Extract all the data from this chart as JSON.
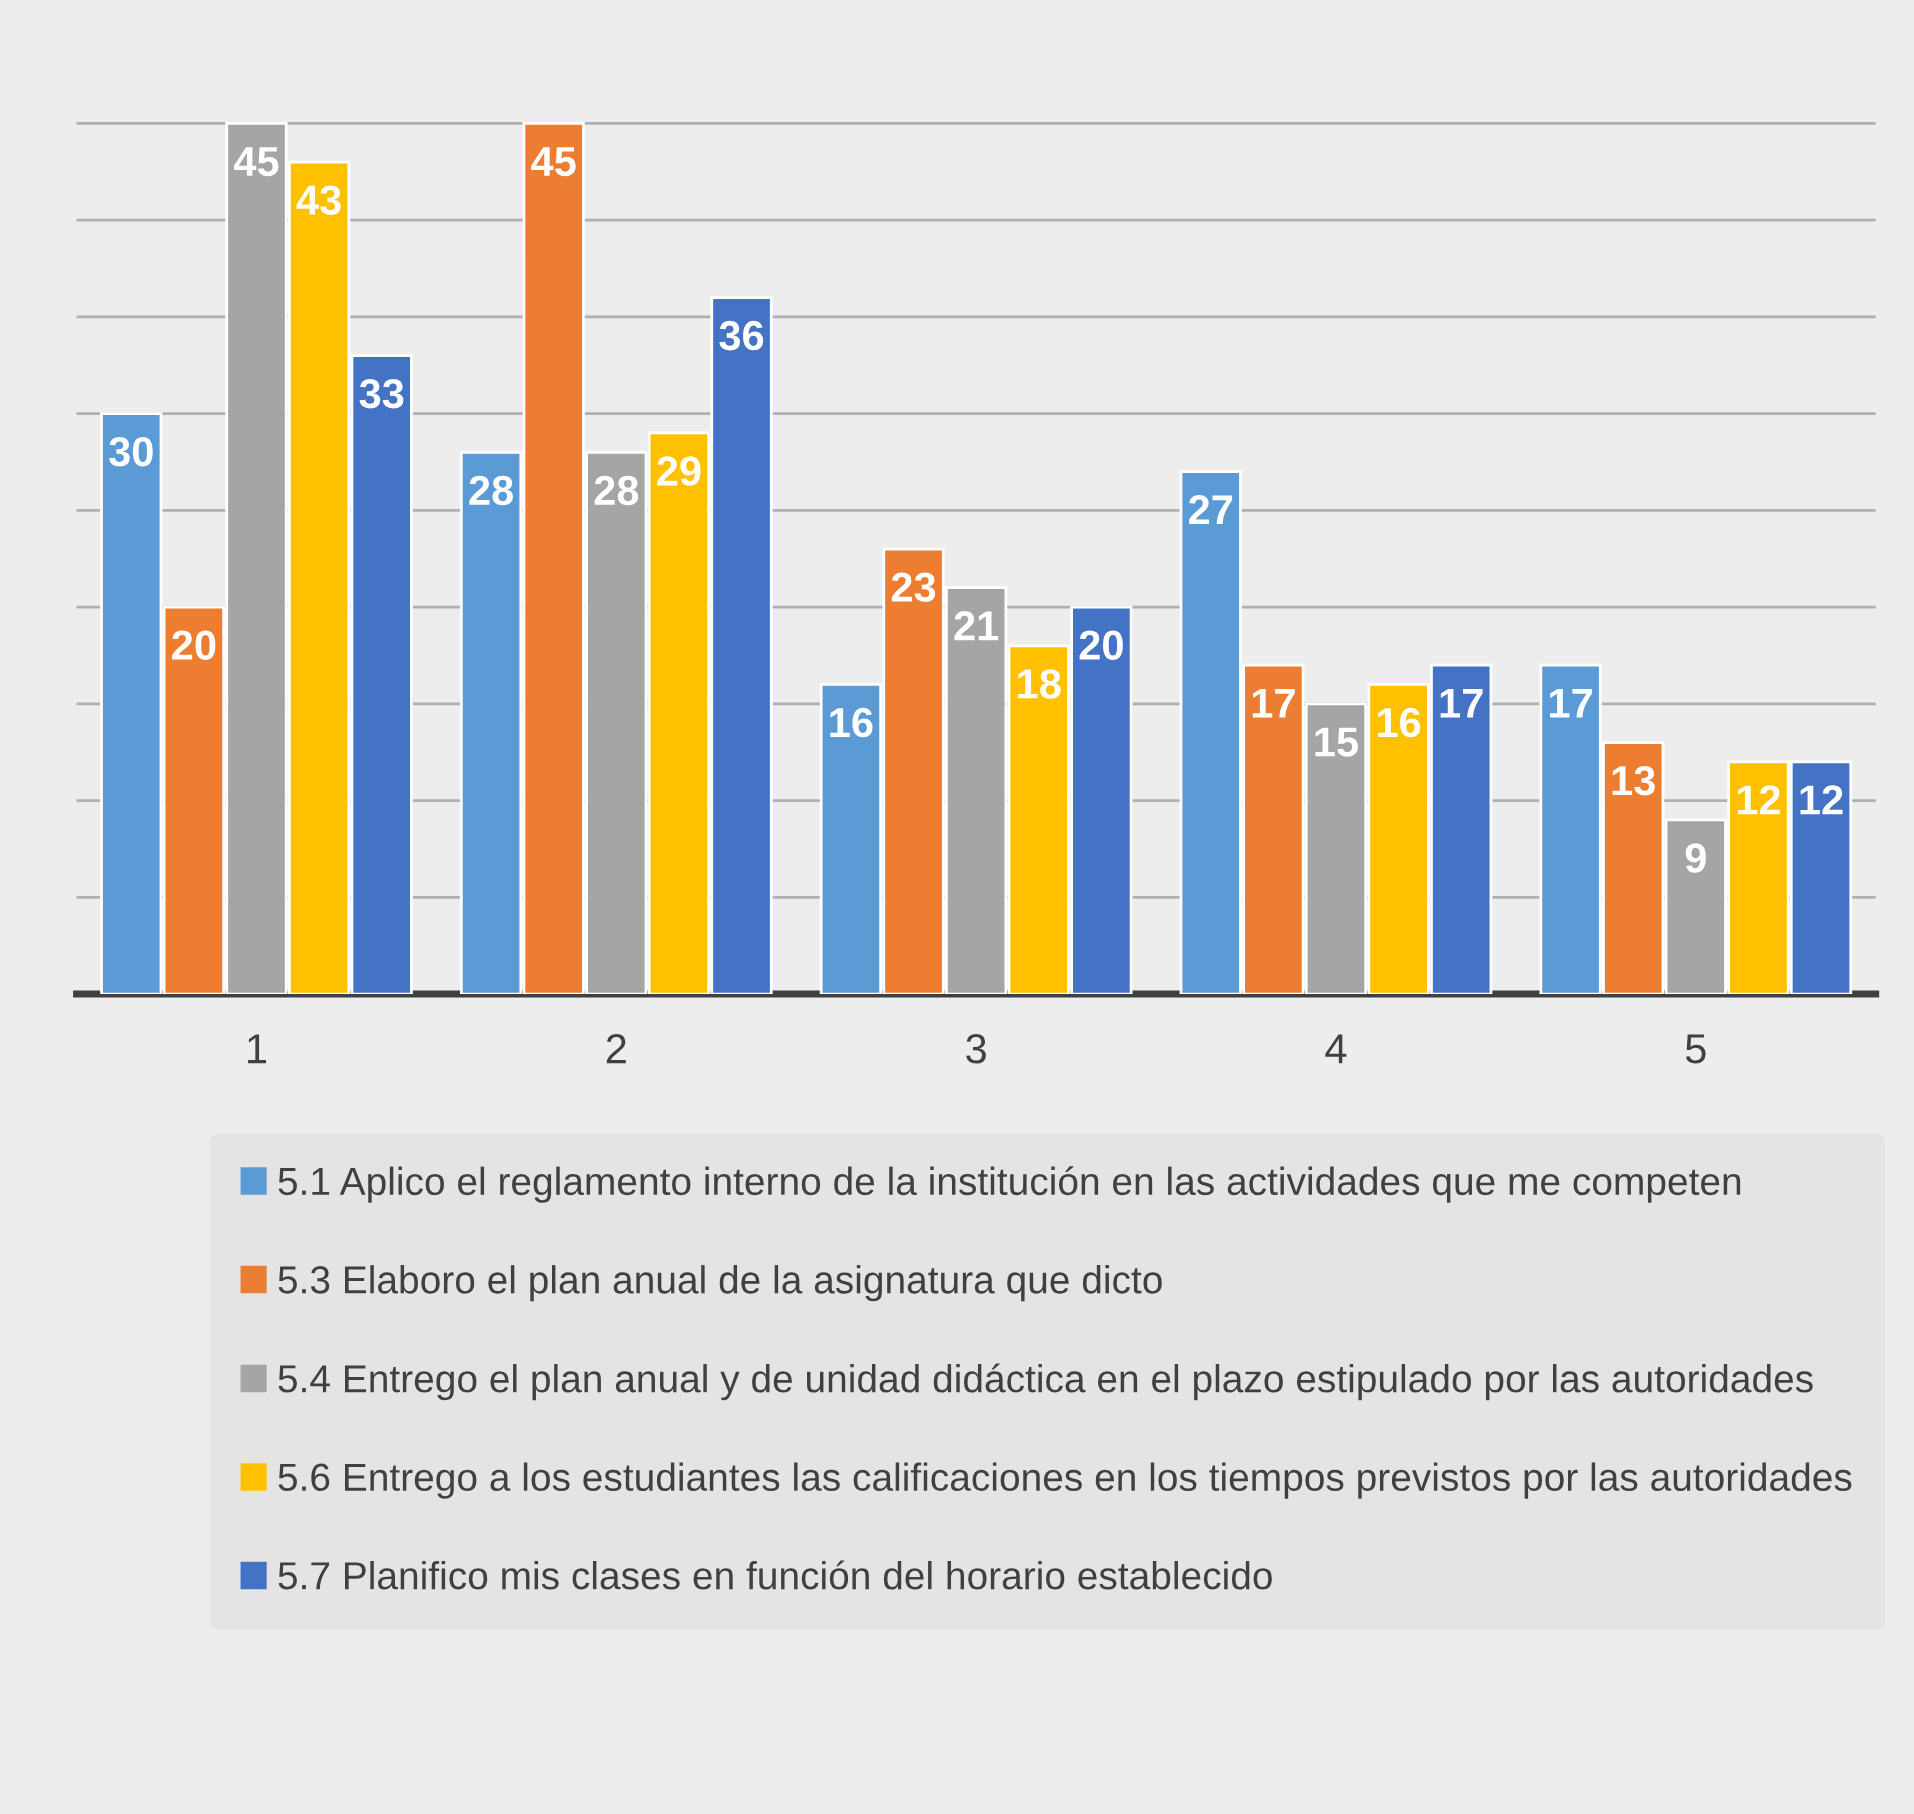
{
  "chart_data": {
    "type": "bar",
    "categories": [
      "1",
      "2",
      "3",
      "4",
      "5"
    ],
    "series": [
      {
        "name": "5.1 Aplico el reglamento interno de la institución en las actividades que me competen",
        "color": "#5b9bd5",
        "values": [
          30,
          28,
          16,
          27,
          17
        ]
      },
      {
        "name": "5.3 Elaboro el plan anual de la asignatura que dicto",
        "color": "#ed7d31",
        "values": [
          20,
          45,
          23,
          17,
          13
        ]
      },
      {
        "name": "5.4 Entrego el plan anual y de unidad didáctica en el plazo estipulado por las autoridades",
        "color": "#a5a5a5",
        "values": [
          45,
          28,
          21,
          15,
          9
        ]
      },
      {
        "name": "5.6 Entrego a los estudiantes las calificaciones en los tiempos previstos por las autoridades",
        "color": "#ffc000",
        "values": [
          43,
          29,
          18,
          16,
          12
        ]
      },
      {
        "name": "5.7 Planifico mis clases en función del horario establecido",
        "color": "#4472c4",
        "values": [
          33,
          36,
          20,
          17,
          12
        ]
      }
    ],
    "yticks": [
      {
        "value": 5,
        "label": null
      },
      {
        "value": 10,
        "label": null
      },
      {
        "value": 15,
        "label": null
      },
      {
        "value": 20,
        "label": null
      },
      {
        "value": 25,
        "label": null
      },
      {
        "value": 30,
        "label": null
      },
      {
        "value": 35,
        "label": null
      },
      {
        "value": 40,
        "label": null
      },
      {
        "value": 45,
        "label": null
      }
    ],
    "tick_labels": "x",
    "grid": "y",
    "data_labels": true,
    "legend": "bottom"
  }
}
